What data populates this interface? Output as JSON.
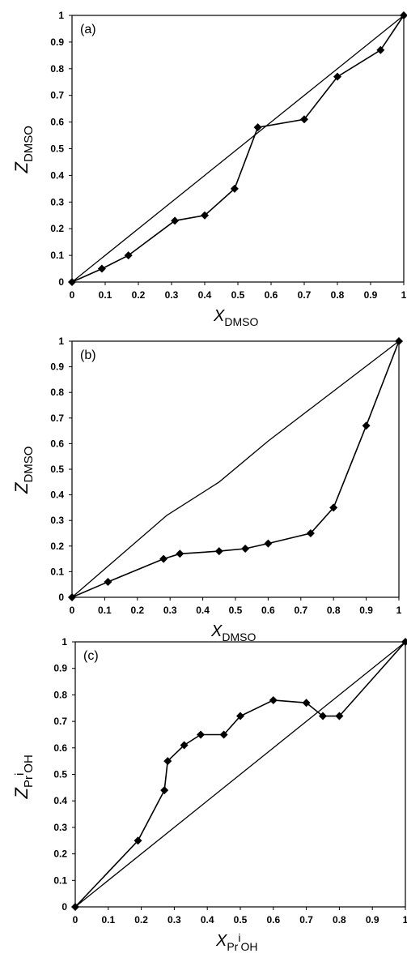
{
  "chart_data": [
    {
      "type": "line",
      "panel_label": "(a)",
      "xlabel": {
        "main": "X",
        "sub": "DMSO",
        "sup": "",
        "sub2": ""
      },
      "ylabel": {
        "main": "Z",
        "sub": "DMSO",
        "sup": "",
        "sub2": ""
      },
      "xlim": [
        0,
        1
      ],
      "ylim": [
        0,
        1
      ],
      "x_ticks": [
        "0",
        "0.1",
        "0.2",
        "0.3",
        "0.4",
        "0.5",
        "0.6",
        "0.7",
        "0.8",
        "0.9",
        "1"
      ],
      "y_ticks": [
        "0",
        "0.1",
        "0.2",
        "0.3",
        "0.4",
        "0.5",
        "0.6",
        "0.7",
        "0.8",
        "0.9",
        "1"
      ],
      "grid": false,
      "diagonal": [
        [
          0,
          0
        ],
        [
          0.5,
          0.5
        ],
        [
          1,
          1
        ]
      ],
      "series": [
        {
          "marker": "diamond",
          "x": [
            0,
            0.09,
            0.17,
            0.31,
            0.4,
            0.49,
            0.56,
            0.7,
            0.8,
            0.93,
            1
          ],
          "y": [
            0,
            0.05,
            0.1,
            0.23,
            0.25,
            0.35,
            0.58,
            0.61,
            0.77,
            0.87,
            1
          ]
        }
      ]
    },
    {
      "type": "line",
      "panel_label": "(b)",
      "xlabel": {
        "main": "X",
        "sub": "DMSO",
        "sup": "",
        "sub2": ""
      },
      "ylabel": {
        "main": "Z",
        "sub": "DMSO",
        "sup": "",
        "sub2": ""
      },
      "xlim": [
        0,
        1
      ],
      "ylim": [
        0,
        1
      ],
      "x_ticks": [
        "0",
        "0.1",
        "0.2",
        "0.3",
        "0.4",
        "0.5",
        "0.6",
        "0.7",
        "0.8",
        "0.9",
        "1"
      ],
      "y_ticks": [
        "0",
        "0.1",
        "0.2",
        "0.3",
        "0.4",
        "0.5",
        "0.6",
        "0.7",
        "0.8",
        "0.9",
        "1"
      ],
      "grid": false,
      "diagonal": [
        [
          0,
          0
        ],
        [
          0.29,
          0.32
        ],
        [
          0.45,
          0.45
        ],
        [
          0.6,
          0.61
        ],
        [
          1,
          1
        ]
      ],
      "series": [
        {
          "marker": "diamond",
          "x": [
            0,
            0.11,
            0.28,
            0.33,
            0.45,
            0.53,
            0.6,
            0.73,
            0.8,
            0.9,
            1
          ],
          "y": [
            0,
            0.06,
            0.15,
            0.17,
            0.18,
            0.19,
            0.21,
            0.25,
            0.35,
            0.67,
            1
          ]
        }
      ]
    },
    {
      "type": "line",
      "panel_label": "(c)",
      "xlabel": {
        "main": "X",
        "sub": "Pr",
        "sup": "i",
        "sub2": "OH"
      },
      "ylabel": {
        "main": "Z",
        "sub": "Pr",
        "sup": "i",
        "sub2": "OH"
      },
      "xlim": [
        0,
        1
      ],
      "ylim": [
        0,
        1
      ],
      "x_ticks": [
        "0",
        "0.1",
        "0.2",
        "0.3",
        "0.4",
        "0.5",
        "0.6",
        "0.7",
        "0.8",
        "0.9",
        "1"
      ],
      "y_ticks": [
        "0",
        "0.1",
        "0.2",
        "0.3",
        "0.4",
        "0.5",
        "0.6",
        "0.7",
        "0.8",
        "0.9",
        "1"
      ],
      "grid": false,
      "diagonal": [
        [
          0,
          0
        ],
        [
          0.5,
          0.5
        ],
        [
          1,
          1
        ]
      ],
      "series": [
        {
          "marker": "diamond",
          "x": [
            0,
            0.19,
            0.27,
            0.28,
            0.33,
            0.38,
            0.45,
            0.5,
            0.6,
            0.7,
            0.75,
            0.8,
            1
          ],
          "y": [
            0,
            0.25,
            0.44,
            0.55,
            0.61,
            0.65,
            0.65,
            0.72,
            0.78,
            0.77,
            0.72,
            0.72,
            1
          ]
        }
      ]
    }
  ]
}
